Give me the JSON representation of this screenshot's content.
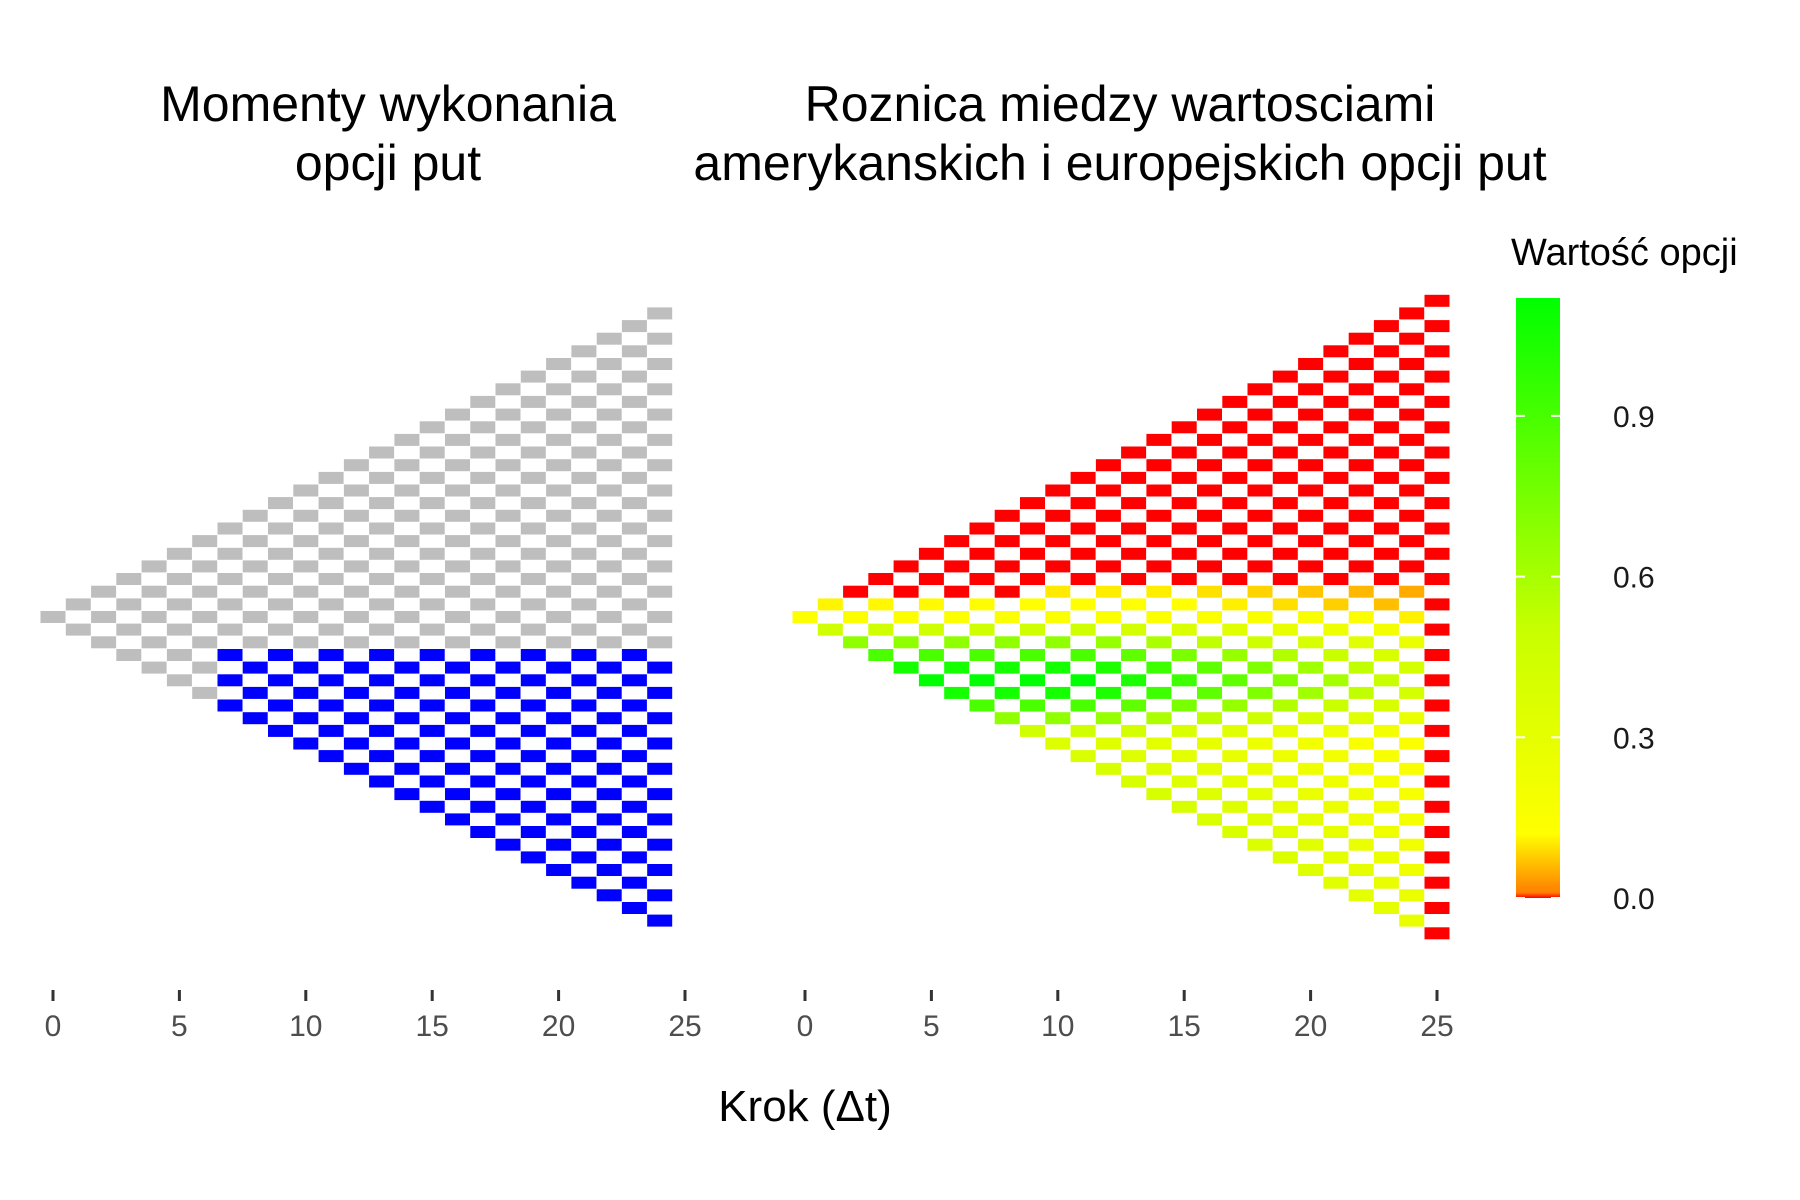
{
  "chart_data": [
    {
      "type": "heatmap",
      "title_lines": [
        "Momenty wykonania",
        "opcji put"
      ],
      "xlabel": "",
      "ylabel": "",
      "x_ticks": [
        "0",
        "5",
        "10",
        "15",
        "20",
        "25"
      ],
      "xlim": [
        0,
        25
      ],
      "steps": 24,
      "exercise_boundary": {
        "first_step": 7,
        "level_at_first_step": -4,
        "min_level": -3,
        "slope_per_step": 0.0833
      },
      "colors": {
        "continue": "#bebebe",
        "exercise": "#0000ff"
      },
      "grid": false,
      "legend": false
    },
    {
      "type": "heatmap",
      "title_lines": [
        "Roznica miedzy wartosciami",
        "amerykanskich i europejskich opcji put"
      ],
      "xlabel": "",
      "ylabel": "",
      "x_ticks": [
        "0",
        "5",
        "10",
        "15",
        "20",
        "25"
      ],
      "xlim": [
        0,
        25
      ],
      "steps": 25,
      "value_range": [
        0,
        1.12
      ],
      "peak": {
        "step": 9,
        "level": -5,
        "value": 1.12
      },
      "colorbar": {
        "title": "Wartość opcji",
        "ticks": [
          "0.0",
          "0.3",
          "0.6",
          "0.9"
        ],
        "tick_values": [
          0.0,
          0.3,
          0.6,
          0.9
        ],
        "stops": [
          {
            "value": 0.0,
            "color": "#ff0000"
          },
          {
            "value": 0.01,
            "color": "#ff7f00"
          },
          {
            "value": 0.12,
            "color": "#ffff00"
          },
          {
            "value": 0.5,
            "color": "#c8ff00"
          },
          {
            "value": 1.12,
            "color": "#00ff00"
          }
        ]
      },
      "grid": false,
      "legend": "right"
    }
  ],
  "shared_xlabel": "Krok (Δt)"
}
